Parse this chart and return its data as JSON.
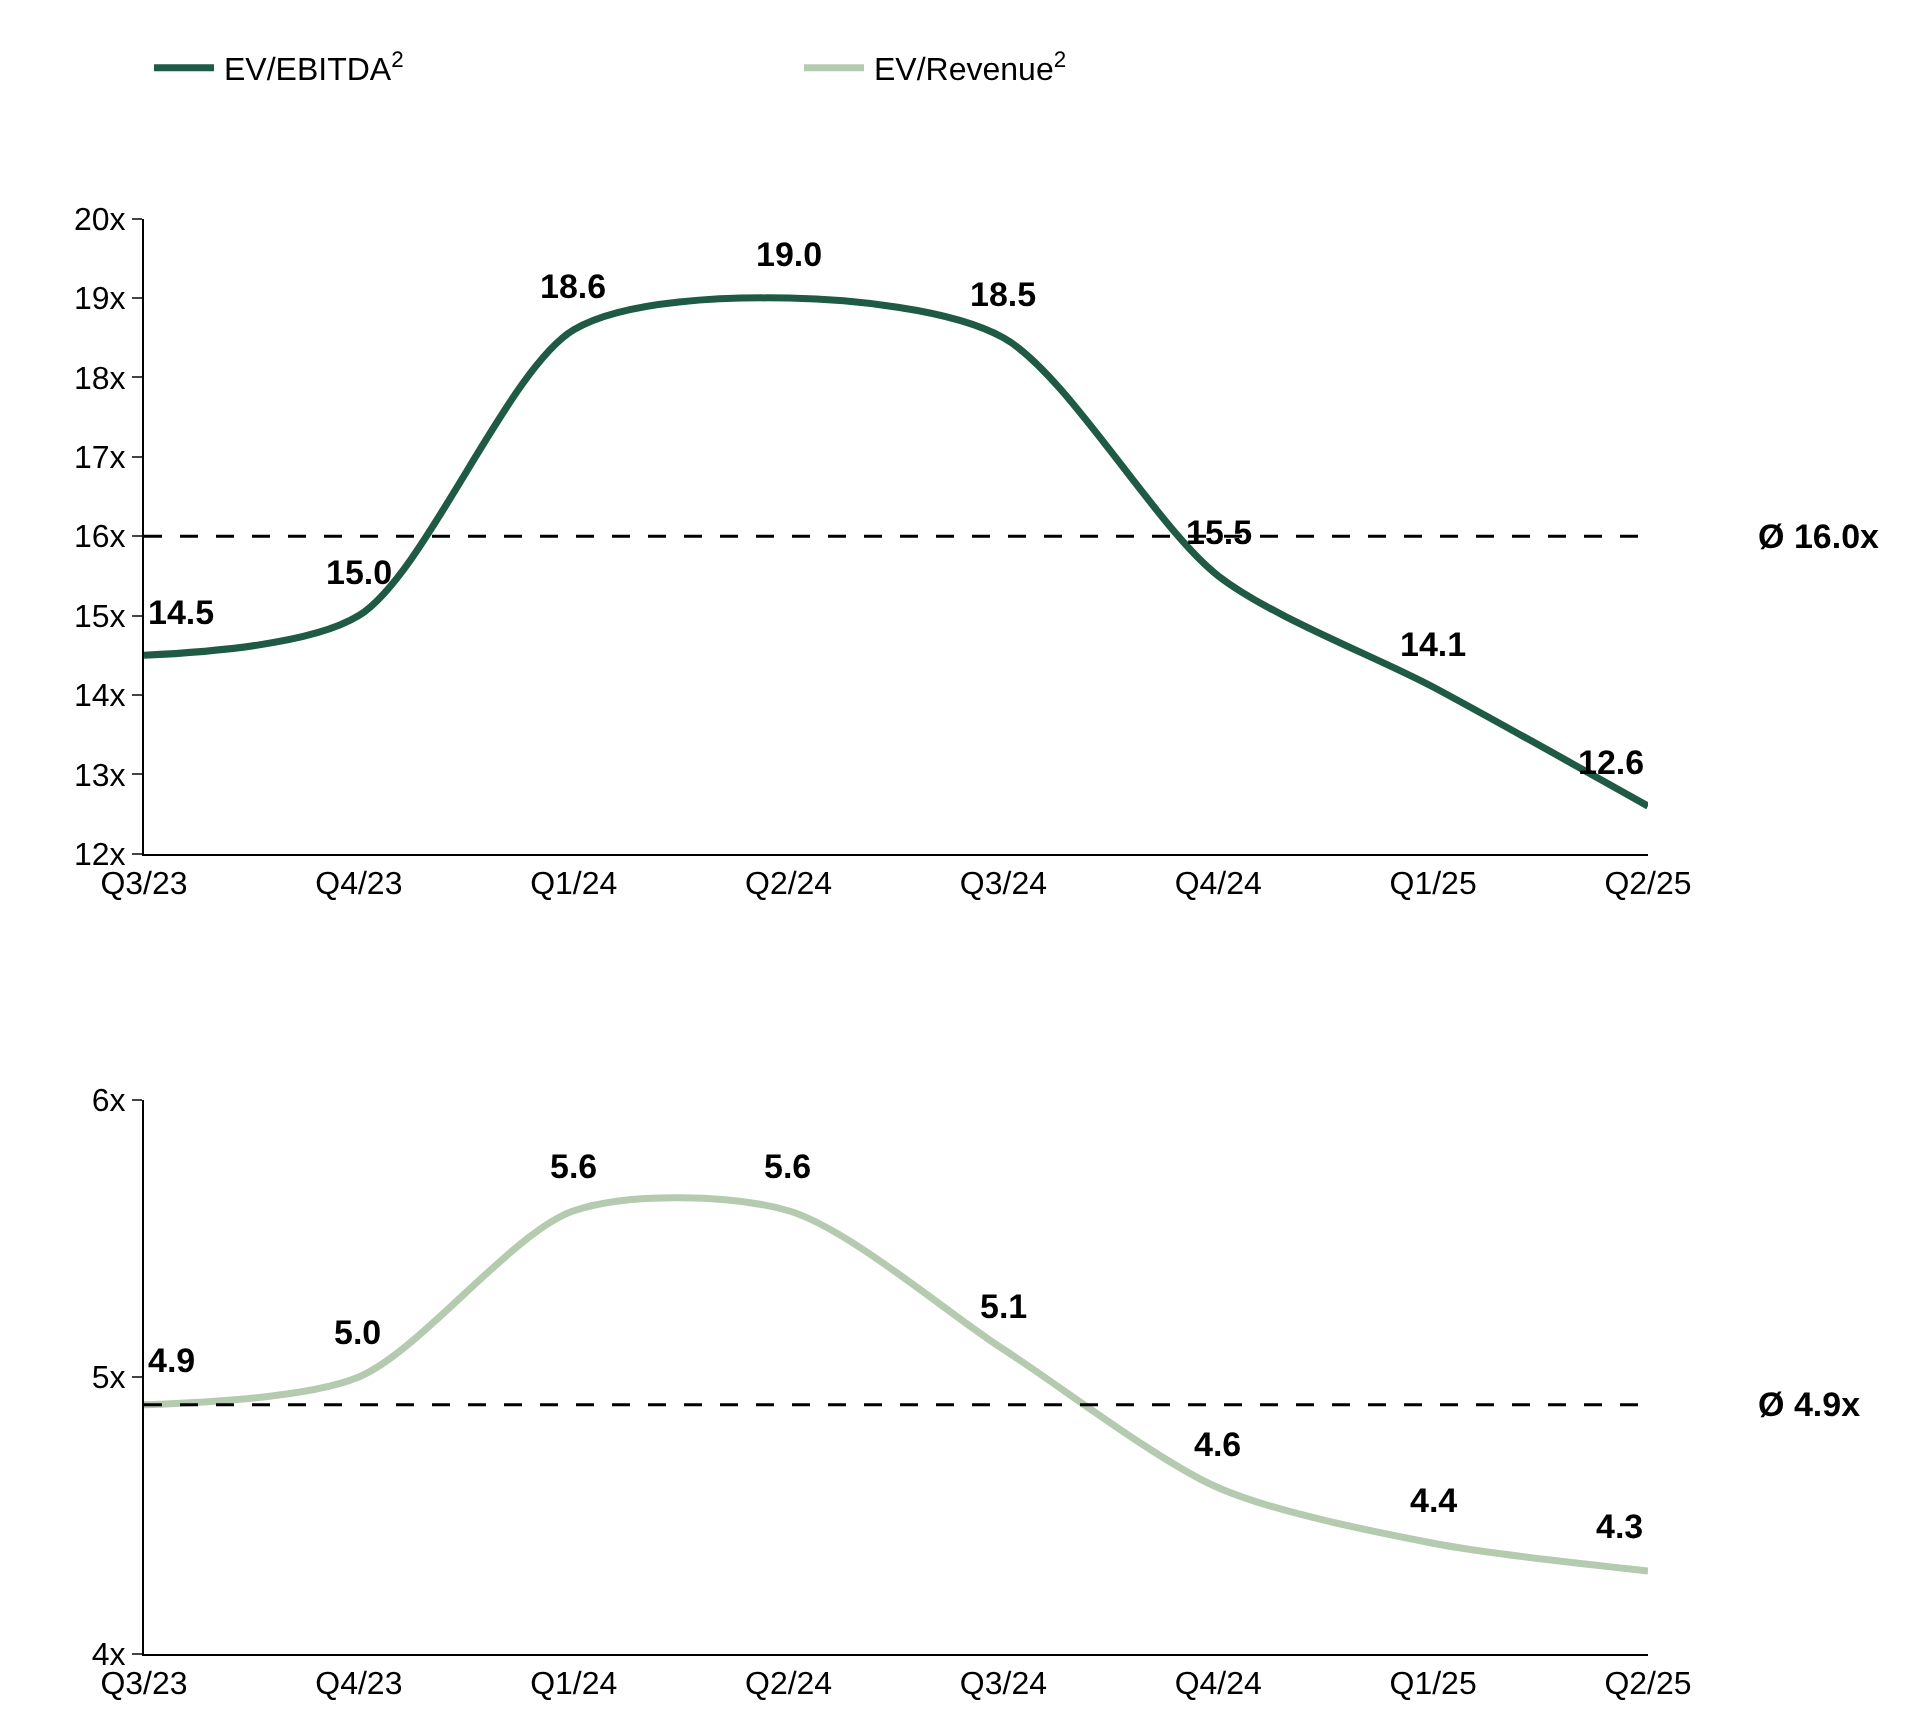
{
  "chart_data": [
    {
      "type": "line",
      "categories": [
        "Q3/23",
        "Q4/23",
        "Q1/24",
        "Q2/24",
        "Q3/24",
        "Q4/24",
        "Q1/25",
        "Q2/25"
      ],
      "series": [
        {
          "name": "EV/EBITDA$^{2}$",
          "color": "#1e5a44",
          "values": [
            14.5,
            15.0,
            18.6,
            19.0,
            18.5,
            15.5,
            14.1,
            12.6
          ],
          "value_labels": [
            "14.5",
            "15.0",
            "18.6",
            "19.0",
            "18.5",
            "15.5",
            "14.1",
            "12.6"
          ]
        }
      ],
      "ylim": [
        12,
        20
      ],
      "yticks": [
        {
          "value": 12,
          "label": "12x"
        },
        {
          "value": 13,
          "label": "13x"
        },
        {
          "value": 14,
          "label": "14x"
        },
        {
          "value": 15,
          "label": "15x"
        },
        {
          "value": 16,
          "label": "16x"
        },
        {
          "value": 17,
          "label": "17x"
        },
        {
          "value": 18,
          "label": "18x"
        },
        {
          "value": 19,
          "label": "19x"
        },
        {
          "value": 20,
          "label": "20x"
        }
      ],
      "ref_lines": [
        {
          "axis": "y",
          "value": 16.0,
          "label": "Ø 16.0x",
          "color": "#000000",
          "line_style": "dashed"
        }
      ],
      "legend": "top",
      "marker": "none",
      "line_style": "solid"
    },
    {
      "type": "line",
      "categories": [
        "Q3/23",
        "Q4/23",
        "Q1/24",
        "Q2/24",
        "Q3/24",
        "Q4/24",
        "Q1/25",
        "Q2/25"
      ],
      "series": [
        {
          "name": "EV/Revenue$^{2}$",
          "color": "#b4cbb0",
          "values": [
            4.9,
            5.0,
            5.6,
            5.6,
            5.1,
            4.6,
            4.4,
            4.3
          ],
          "value_labels": [
            "4.9",
            "5.0",
            "5.6",
            "5.6",
            "5.1",
            "4.6",
            "4.4",
            "4.3"
          ]
        }
      ],
      "ylim": [
        4,
        6
      ],
      "yticks": [
        {
          "value": 4,
          "label": "4x"
        },
        {
          "value": 5,
          "label": "5x"
        },
        {
          "value": 6,
          "label": "6x"
        }
      ],
      "ref_lines": [
        {
          "axis": "y",
          "value": 4.9,
          "label": "Ø 4.9x",
          "color": "#000000",
          "line_style": "dashed"
        }
      ],
      "legend": "top",
      "marker": "none",
      "line_style": "solid"
    }
  ]
}
